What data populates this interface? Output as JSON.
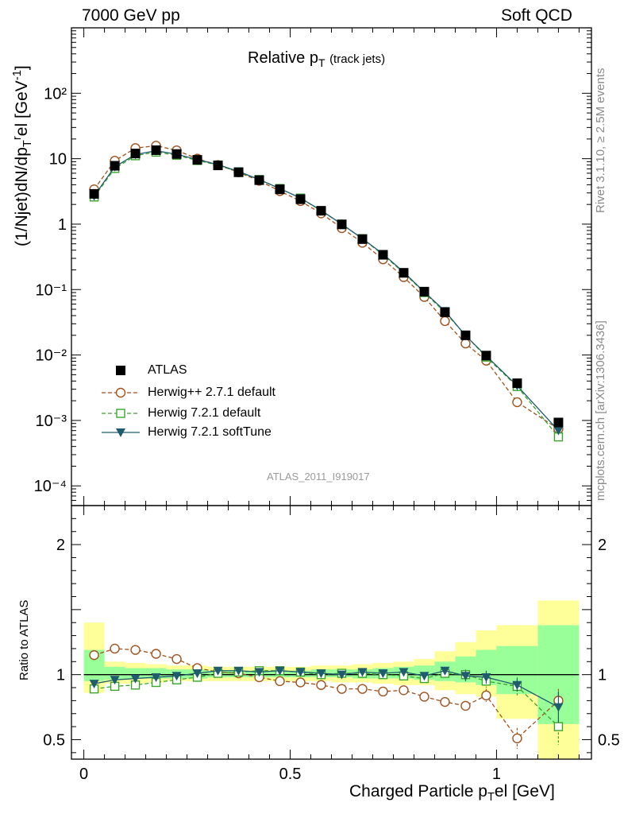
{
  "header": {
    "left": "7000 GeV pp",
    "right": "Soft QCD"
  },
  "side_labels": {
    "rivet": "Rivet 3.1.10, ≥ 2.5M events",
    "mcplots": "mcplots.cern.ch [arXiv:1306.3436]"
  },
  "watermark": "ATLAS_2011_I919017",
  "colors": {
    "atlas": "#000000",
    "herwigpp": "#a0521e",
    "herwig721": "#3aa52a",
    "softtune": "#1f5c6e",
    "band_yellow": "#ffff99",
    "band_green": "#99ff99"
  },
  "chart_data": [
    {
      "type": "scatter",
      "title": "Relative p",
      "title_sub": "T",
      "title_note": "(track jets)",
      "ylabel": "(1/Njet)dN/dp",
      "ylabel_tail": "el [GeV",
      "yscale": "log",
      "ylim": [
        5e-05,
        1000
      ],
      "xlim": [
        -0.03,
        1.23
      ],
      "y_tick_labels": [
        "10⁻⁴",
        "10⁻³",
        "10⁻²",
        "10⁻¹",
        "1",
        "10",
        "10²"
      ],
      "legend_position": "bottom-left",
      "x": [
        0.025,
        0.075,
        0.125,
        0.175,
        0.225,
        0.275,
        0.325,
        0.375,
        0.425,
        0.475,
        0.525,
        0.575,
        0.625,
        0.675,
        0.725,
        0.775,
        0.825,
        0.875,
        0.925,
        0.975,
        1.05,
        1.15
      ],
      "series": [
        {
          "name": "ATLAS",
          "style": "square-filled",
          "colorKey": "atlas",
          "values": [
            2.9,
            7.8,
            12.0,
            13.5,
            11.8,
            9.6,
            7.9,
            6.2,
            4.7,
            3.4,
            2.4,
            1.6,
            0.99,
            0.59,
            0.34,
            0.18,
            0.093,
            0.045,
            0.02,
            0.0098,
            0.0037,
            0.00093
          ]
        },
        {
          "name": "Herwig++ 2.7.1 default",
          "style": "circle-open",
          "colorKey": "herwigpp",
          "values": [
            3.4,
            9.3,
            14.5,
            15.8,
            13.4,
            10.0,
            8.0,
            6.2,
            4.6,
            3.2,
            2.25,
            1.46,
            0.87,
            0.52,
            0.29,
            0.155,
            0.077,
            0.033,
            0.015,
            0.0082,
            0.0019,
            0.00074
          ]
        },
        {
          "name": "Herwig 7.2.1 default",
          "style": "square-open",
          "colorKey": "herwig721",
          "values": [
            2.6,
            7.1,
            11.1,
            12.6,
            11.3,
            9.4,
            8.0,
            6.3,
            4.8,
            3.5,
            2.5,
            1.6,
            1.0,
            0.6,
            0.34,
            0.18,
            0.09,
            0.045,
            0.02,
            0.0093,
            0.0033,
            0.00056
          ]
        },
        {
          "name": "Herwig 7.2.1 softTune",
          "style": "triangle-down",
          "colorKey": "softtune",
          "values": [
            2.7,
            7.5,
            11.6,
            13.2,
            11.7,
            9.7,
            8.1,
            6.4,
            4.8,
            3.5,
            2.5,
            1.62,
            1.0,
            0.6,
            0.35,
            0.185,
            0.092,
            0.047,
            0.0197,
            0.0097,
            0.0034,
            0.0007
          ]
        }
      ]
    },
    {
      "type": "scatter",
      "ylabel": "Ratio to ATLAS",
      "xlabel": "Charged Particle p",
      "xlabel_sub": "T",
      "xlabel_tail": "el [GeV]",
      "ylim": [
        0.35,
        2.3
      ],
      "xlim": [
        -0.03,
        1.23
      ],
      "x_ticks": [
        0,
        0.5,
        1
      ],
      "x_tick_labels": [
        "0",
        "0.5",
        "1"
      ],
      "y_ticks": [
        0.5,
        1,
        2
      ],
      "y_tick_labels": [
        "0.5",
        "1",
        "2"
      ],
      "bands": {
        "edges": [
          0.0,
          0.05,
          0.1,
          0.15,
          0.2,
          0.25,
          0.3,
          0.35,
          0.4,
          0.45,
          0.5,
          0.55,
          0.6,
          0.65,
          0.7,
          0.75,
          0.8,
          0.85,
          0.9,
          0.95,
          1.0,
          1.1,
          1.2
        ],
        "yellow_lo": [
          0.86,
          0.93,
          0.93,
          0.94,
          0.95,
          0.95,
          0.95,
          0.95,
          0.95,
          0.95,
          0.95,
          0.95,
          0.94,
          0.94,
          0.93,
          0.92,
          0.92,
          0.88,
          0.85,
          0.83,
          0.66,
          0.34
        ],
        "yellow_hi": [
          1.4,
          1.1,
          1.09,
          1.08,
          1.07,
          1.07,
          1.06,
          1.06,
          1.06,
          1.06,
          1.06,
          1.07,
          1.07,
          1.08,
          1.09,
          1.1,
          1.12,
          1.18,
          1.25,
          1.34,
          1.38,
          1.57
        ],
        "green_lo": [
          0.95,
          0.96,
          0.97,
          0.97,
          0.97,
          0.97,
          0.98,
          0.98,
          0.98,
          0.98,
          0.98,
          0.98,
          0.98,
          0.97,
          0.97,
          0.97,
          0.96,
          0.95,
          0.94,
          0.92,
          0.85,
          0.62
        ],
        "green_hi": [
          1.19,
          1.06,
          1.05,
          1.05,
          1.04,
          1.04,
          1.03,
          1.03,
          1.03,
          1.03,
          1.03,
          1.04,
          1.04,
          1.04,
          1.05,
          1.06,
          1.07,
          1.1,
          1.14,
          1.19,
          1.22,
          1.38
        ]
      },
      "reference_line": 1,
      "series": [
        {
          "name": "Herwig++ 2.7.1 default",
          "colorKey": "herwigpp",
          "style": "circle-open",
          "dashed": true,
          "values": [
            1.15,
            1.2,
            1.19,
            1.16,
            1.12,
            1.05,
            1.02,
            1.01,
            0.98,
            0.95,
            0.94,
            0.92,
            0.89,
            0.89,
            0.87,
            0.88,
            0.83,
            0.79,
            0.76,
            0.84,
            0.51,
            0.8
          ],
          "err": [
            0,
            0,
            0,
            0,
            0,
            0,
            0,
            0,
            0,
            0,
            0,
            0,
            0,
            0,
            0,
            0,
            0,
            0.02,
            0.03,
            0.05,
            0.08,
            0.09
          ]
        },
        {
          "name": "Herwig 7.2.1 default",
          "colorKey": "herwig721",
          "style": "square-open",
          "dashed": true,
          "values": [
            0.89,
            0.91,
            0.92,
            0.94,
            0.96,
            0.98,
            1.01,
            1.02,
            1.03,
            1.03,
            1.02,
            1.0,
            1.01,
            1.01,
            1.0,
            0.99,
            0.97,
            1.01,
            1.0,
            0.95,
            0.91,
            0.6
          ],
          "err": [
            0,
            0,
            0,
            0,
            0,
            0,
            0,
            0,
            0,
            0,
            0,
            0,
            0,
            0,
            0,
            0,
            0.02,
            0.03,
            0.04,
            0.05,
            0.07,
            0.14
          ]
        },
        {
          "name": "Herwig 7.2.1 softTune",
          "colorKey": "softtune",
          "style": "triangle-down",
          "dashed": false,
          "values": [
            0.93,
            0.96,
            0.97,
            0.98,
            0.99,
            1.01,
            1.03,
            1.03,
            1.02,
            1.03,
            1.02,
            1.01,
            1.0,
            1.02,
            1.01,
            1.02,
            0.99,
            1.03,
            0.99,
            0.98,
            0.92,
            0.75
          ],
          "err": [
            0,
            0,
            0,
            0,
            0,
            0,
            0,
            0,
            0,
            0,
            0,
            0,
            0,
            0,
            0,
            0,
            0.02,
            0.03,
            0.04,
            0.05,
            0.05,
            0.12
          ]
        }
      ]
    }
  ]
}
